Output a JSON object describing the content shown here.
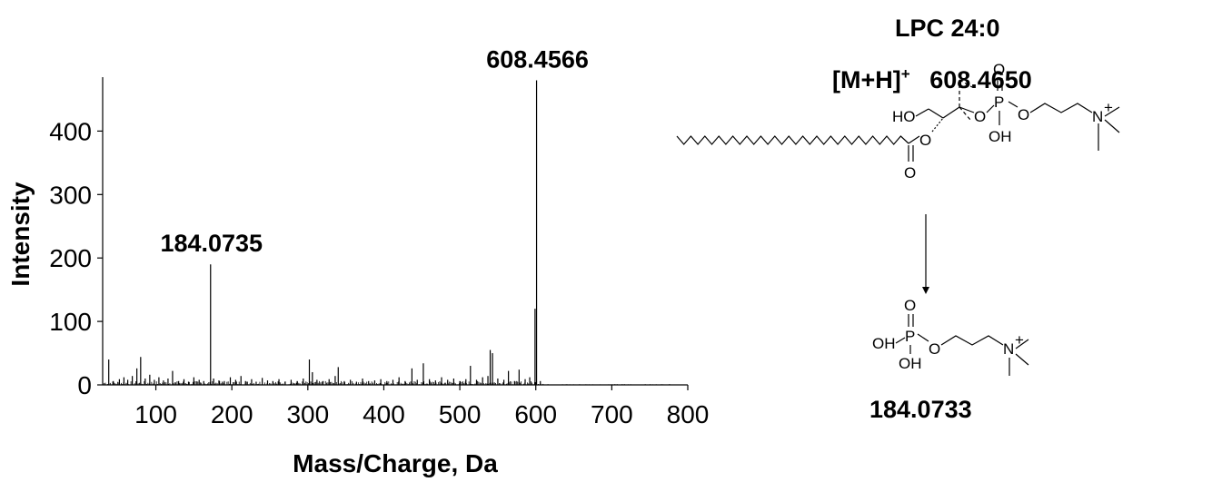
{
  "chart_data": {
    "type": "bar",
    "xlabel": "Mass/Charge, Da",
    "ylabel": "Intensity",
    "xlim": [
      30,
      800
    ],
    "ylim": [
      0,
      485
    ],
    "xticks": [
      100,
      200,
      300,
      400,
      500,
      600,
      700,
      800
    ],
    "yticks": [
      0,
      100,
      200,
      300,
      400
    ],
    "peaks": [
      {
        "mz": 38,
        "intensity": 40
      },
      {
        "mz": 44,
        "intensity": 6
      },
      {
        "mz": 52,
        "intensity": 9
      },
      {
        "mz": 58,
        "intensity": 12
      },
      {
        "mz": 63,
        "intensity": 8
      },
      {
        "mz": 69,
        "intensity": 14
      },
      {
        "mz": 75,
        "intensity": 26
      },
      {
        "mz": 80,
        "intensity": 44
      },
      {
        "mz": 86,
        "intensity": 10
      },
      {
        "mz": 92,
        "intensity": 16
      },
      {
        "mz": 98,
        "intensity": 8
      },
      {
        "mz": 104,
        "intensity": 12
      },
      {
        "mz": 110,
        "intensity": 7
      },
      {
        "mz": 116,
        "intensity": 10
      },
      {
        "mz": 122,
        "intensity": 22
      },
      {
        "mz": 130,
        "intensity": 6
      },
      {
        "mz": 137,
        "intensity": 9
      },
      {
        "mz": 143,
        "intensity": 5
      },
      {
        "mz": 150,
        "intensity": 12
      },
      {
        "mz": 157,
        "intensity": 8
      },
      {
        "mz": 163,
        "intensity": 6
      },
      {
        "mz": 172,
        "intensity": 190
      },
      {
        "mz": 176,
        "intensity": 10
      },
      {
        "mz": 183,
        "intensity": 7
      },
      {
        "mz": 190,
        "intensity": 6
      },
      {
        "mz": 198,
        "intensity": 12
      },
      {
        "mz": 205,
        "intensity": 8
      },
      {
        "mz": 212,
        "intensity": 14
      },
      {
        "mz": 218,
        "intensity": 6
      },
      {
        "mz": 226,
        "intensity": 9
      },
      {
        "mz": 232,
        "intensity": 5
      },
      {
        "mz": 240,
        "intensity": 11
      },
      {
        "mz": 247,
        "intensity": 7
      },
      {
        "mz": 254,
        "intensity": 6
      },
      {
        "mz": 262,
        "intensity": 9
      },
      {
        "mz": 270,
        "intensity": 5
      },
      {
        "mz": 278,
        "intensity": 8
      },
      {
        "mz": 286,
        "intensity": 6
      },
      {
        "mz": 294,
        "intensity": 10
      },
      {
        "mz": 302,
        "intensity": 40
      },
      {
        "mz": 306,
        "intensity": 20
      },
      {
        "mz": 312,
        "intensity": 8
      },
      {
        "mz": 320,
        "intensity": 6
      },
      {
        "mz": 328,
        "intensity": 9
      },
      {
        "mz": 336,
        "intensity": 14
      },
      {
        "mz": 340,
        "intensity": 28
      },
      {
        "mz": 348,
        "intensity": 6
      },
      {
        "mz": 356,
        "intensity": 8
      },
      {
        "mz": 364,
        "intensity": 5
      },
      {
        "mz": 372,
        "intensity": 10
      },
      {
        "mz": 380,
        "intensity": 6
      },
      {
        "mz": 388,
        "intensity": 7
      },
      {
        "mz": 396,
        "intensity": 9
      },
      {
        "mz": 404,
        "intensity": 6
      },
      {
        "mz": 412,
        "intensity": 8
      },
      {
        "mz": 420,
        "intensity": 12
      },
      {
        "mz": 428,
        "intensity": 6
      },
      {
        "mz": 437,
        "intensity": 26
      },
      {
        "mz": 444,
        "intensity": 8
      },
      {
        "mz": 452,
        "intensity": 34
      },
      {
        "mz": 460,
        "intensity": 9
      },
      {
        "mz": 468,
        "intensity": 7
      },
      {
        "mz": 476,
        "intensity": 12
      },
      {
        "mz": 484,
        "intensity": 8
      },
      {
        "mz": 492,
        "intensity": 10
      },
      {
        "mz": 500,
        "intensity": 6
      },
      {
        "mz": 508,
        "intensity": 9
      },
      {
        "mz": 514,
        "intensity": 30
      },
      {
        "mz": 522,
        "intensity": 8
      },
      {
        "mz": 530,
        "intensity": 12
      },
      {
        "mz": 537,
        "intensity": 14
      },
      {
        "mz": 540,
        "intensity": 55
      },
      {
        "mz": 543,
        "intensity": 50
      },
      {
        "mz": 550,
        "intensity": 10
      },
      {
        "mz": 558,
        "intensity": 8
      },
      {
        "mz": 564,
        "intensity": 22
      },
      {
        "mz": 572,
        "intensity": 6
      },
      {
        "mz": 578,
        "intensity": 24
      },
      {
        "mz": 586,
        "intensity": 9
      },
      {
        "mz": 592,
        "intensity": 12
      },
      {
        "mz": 599,
        "intensity": 120
      },
      {
        "mz": 601,
        "intensity": 480
      },
      {
        "mz": 606,
        "intensity": 6
      }
    ],
    "noise_until": 780,
    "peak_labels": [
      {
        "text": "608.4566",
        "mz": 601,
        "intensity": 480
      },
      {
        "text": "184.0735",
        "mz": 172,
        "intensity": 190
      }
    ]
  },
  "structure": {
    "title": "LPC 24:0",
    "ion_label": "[M+H]",
    "ion_charge": "+",
    "ion_mass": "608.4650",
    "fragment_mass": "184.0733",
    "atoms": {
      "ho": "HO",
      "o": "O",
      "p": "P",
      "oh": "OH",
      "n": "N",
      "plus": "+"
    }
  }
}
